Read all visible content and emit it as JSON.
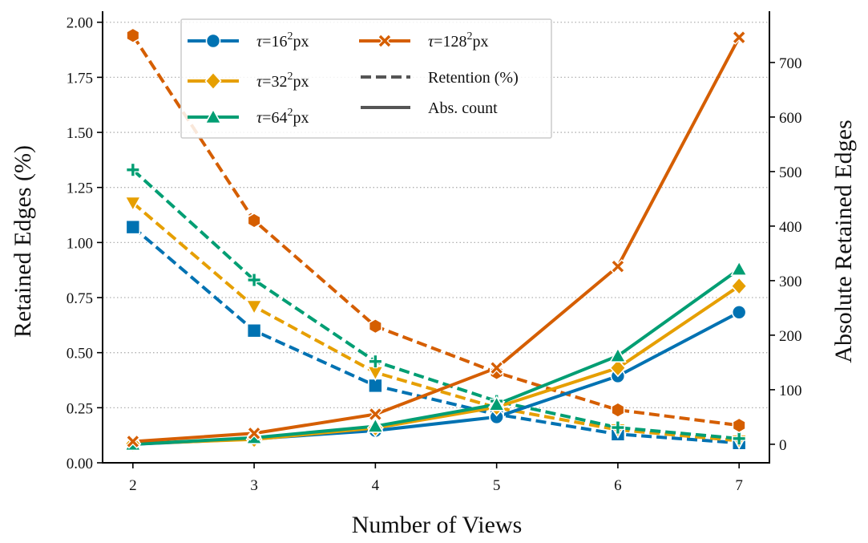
{
  "chart_data": {
    "type": "line",
    "xlabel": "Number of Views",
    "ylabel": "Retained Edges (%)",
    "y2label": "Absolute Retained Edges",
    "x": [
      2,
      3,
      4,
      5,
      6,
      7
    ],
    "xticks": [
      "2",
      "3",
      "4",
      "5",
      "6",
      "7"
    ],
    "ylim": [
      0,
      2.05
    ],
    "yticks": [
      "0.00",
      "0.25",
      "0.50",
      "0.75",
      "1.00",
      "1.25",
      "1.50",
      "1.75",
      "2.00"
    ],
    "y2lim": [
      -34,
      794
    ],
    "y2ticks": [
      "0",
      "100",
      "200",
      "300",
      "400",
      "500",
      "600",
      "700"
    ],
    "grid": "horizontal dotted",
    "legend_position": "top-left",
    "series": [
      {
        "name_base": "τ=16",
        "name_sup": "2",
        "name_unit": "px",
        "color": "#0072b2",
        "marker": "circle",
        "retention_marker": "square",
        "retention": [
          1.07,
          0.6,
          0.35,
          0.22,
          0.13,
          0.09
        ],
        "absolute": [
          0,
          10,
          25,
          50,
          125,
          242
        ]
      },
      {
        "name_base": "τ=32",
        "name_sup": "2",
        "name_unit": "px",
        "color": "#e69f00",
        "marker": "diamond",
        "retention_marker": "triangle-down",
        "retention": [
          1.18,
          0.71,
          0.41,
          0.25,
          0.15,
          0.1
        ],
        "absolute": [
          1,
          9,
          30,
          68,
          140,
          290
        ]
      },
      {
        "name_base": "τ=64",
        "name_sup": "2",
        "name_unit": "px",
        "color": "#009e73",
        "marker": "triangle-up",
        "retention_marker": "plus",
        "retention": [
          1.33,
          0.83,
          0.46,
          0.28,
          0.16,
          0.11
        ],
        "absolute": [
          0,
          12,
          33,
          73,
          162,
          321
        ]
      },
      {
        "name_base": "τ=128",
        "name_sup": "2",
        "name_unit": "px",
        "color": "#d55e00",
        "marker": "x",
        "retention_marker": "hexagon",
        "retention": [
          1.94,
          1.1,
          0.62,
          0.41,
          0.24,
          0.17
        ],
        "absolute": [
          5,
          20,
          55,
          140,
          326,
          746
        ]
      }
    ],
    "legend_style": [
      {
        "label": "Retention (%)",
        "style": "dashed"
      },
      {
        "label": "Abs. count",
        "style": "solid"
      }
    ]
  }
}
